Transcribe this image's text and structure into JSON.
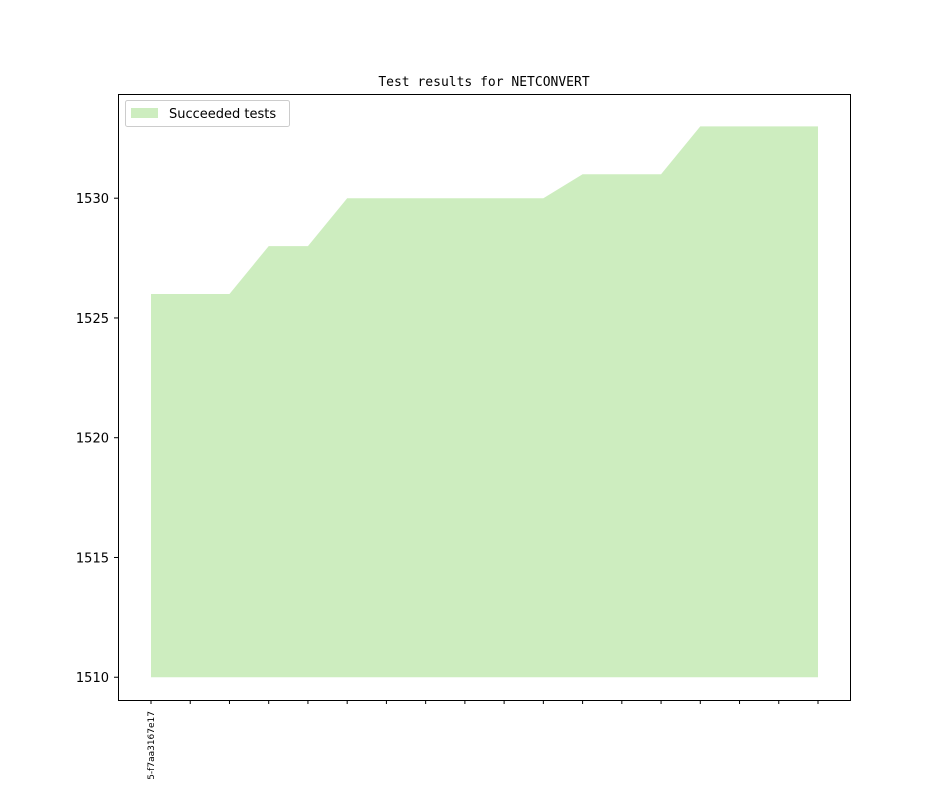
{
  "chart_data": {
    "type": "area",
    "title": "Test results for NETCONVERT",
    "xlabel": "",
    "ylabel": "",
    "x_tick_count": 18,
    "x_tick_labels": [
      "5-f7aa3167e17"
    ],
    "ylim": [
      1509.05,
      1534.35
    ],
    "yticks": [
      1510,
      1515,
      1520,
      1525,
      1530
    ],
    "y_tick_labels": [
      "1510",
      "1515",
      "1520",
      "1525",
      "1530"
    ],
    "baseline": 1510,
    "series": [
      {
        "name": "Succeeded tests",
        "color": "#cdedbf",
        "values": [
          1526,
          1526,
          1526,
          1528,
          1528,
          1530,
          1530,
          1530,
          1530,
          1530,
          1530,
          1531,
          1531,
          1531,
          1533,
          1533,
          1533,
          1533
        ]
      }
    ],
    "grid": false,
    "legend_position": "upper-left"
  }
}
